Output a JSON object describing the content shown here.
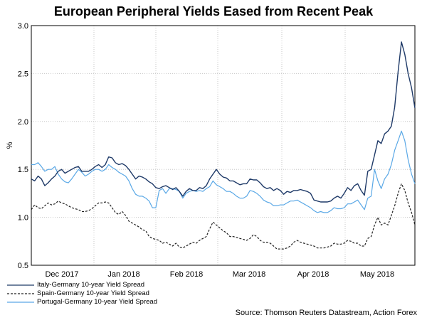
{
  "chart_data": {
    "type": "line",
    "title": "European Peripheral Yields Eased from Recent Peak",
    "ylabel": "%",
    "xlabel": "",
    "ylim": [
      0.5,
      3.0
    ],
    "yticks": [
      "0.5",
      "1.0",
      "1.5",
      "2.0",
      "2.5",
      "3.0"
    ],
    "xticks": [
      "Dec 2017",
      "Jan 2018",
      "Feb 2018",
      "Mar 2018",
      "Apr 2018",
      "May 2018"
    ],
    "grid": true,
    "legend_placement": "bottom-left",
    "source": "Source: Thomson Reuters Datastream, Action Forex",
    "series": [
      {
        "name": "Italy-Germany 10-year Yield Spread",
        "color": "#1f3a68",
        "style": "solid",
        "values": [
          1.4,
          1.38,
          1.43,
          1.4,
          1.33,
          1.36,
          1.4,
          1.43,
          1.48,
          1.5,
          1.46,
          1.48,
          1.5,
          1.52,
          1.53,
          1.48,
          1.48,
          1.48,
          1.5,
          1.53,
          1.55,
          1.52,
          1.55,
          1.63,
          1.62,
          1.57,
          1.55,
          1.56,
          1.54,
          1.5,
          1.45,
          1.4,
          1.43,
          1.42,
          1.4,
          1.37,
          1.35,
          1.31,
          1.3,
          1.32,
          1.33,
          1.31,
          1.29,
          1.31,
          1.27,
          1.22,
          1.27,
          1.3,
          1.28,
          1.28,
          1.31,
          1.3,
          1.33,
          1.4,
          1.45,
          1.5,
          1.45,
          1.42,
          1.41,
          1.38,
          1.38,
          1.36,
          1.34,
          1.35,
          1.35,
          1.4,
          1.39,
          1.39,
          1.36,
          1.32,
          1.3,
          1.31,
          1.28,
          1.3,
          1.28,
          1.24,
          1.27,
          1.26,
          1.28,
          1.28,
          1.29,
          1.28,
          1.27,
          1.25,
          1.18,
          1.17,
          1.16,
          1.16,
          1.16,
          1.17,
          1.2,
          1.22,
          1.2,
          1.25,
          1.31,
          1.28,
          1.33,
          1.35,
          1.28,
          1.23,
          1.48,
          1.5,
          1.65,
          1.8,
          1.77,
          1.87,
          1.9,
          1.95,
          2.15,
          2.52,
          2.83,
          2.7,
          2.5,
          2.35,
          2.14
        ]
      },
      {
        "name": "Spain-Germany 10-year Yield Spread",
        "color": "#222222",
        "style": "dashed",
        "values": [
          1.08,
          1.13,
          1.1,
          1.09,
          1.12,
          1.15,
          1.13,
          1.14,
          1.17,
          1.15,
          1.14,
          1.12,
          1.1,
          1.09,
          1.08,
          1.06,
          1.06,
          1.07,
          1.09,
          1.12,
          1.15,
          1.15,
          1.16,
          1.15,
          1.1,
          1.05,
          1.03,
          1.06,
          1.02,
          0.96,
          0.94,
          0.92,
          0.9,
          0.87,
          0.86,
          0.8,
          0.78,
          0.77,
          0.76,
          0.73,
          0.74,
          0.72,
          0.7,
          0.73,
          0.69,
          0.68,
          0.7,
          0.72,
          0.74,
          0.73,
          0.76,
          0.78,
          0.8,
          0.88,
          0.95,
          0.92,
          0.89,
          0.86,
          0.84,
          0.8,
          0.8,
          0.79,
          0.78,
          0.77,
          0.76,
          0.78,
          0.82,
          0.8,
          0.76,
          0.74,
          0.74,
          0.73,
          0.7,
          0.67,
          0.67,
          0.67,
          0.68,
          0.7,
          0.74,
          0.76,
          0.74,
          0.73,
          0.72,
          0.71,
          0.7,
          0.68,
          0.68,
          0.68,
          0.69,
          0.7,
          0.73,
          0.72,
          0.72,
          0.73,
          0.76,
          0.75,
          0.73,
          0.73,
          0.7,
          0.7,
          0.78,
          0.8,
          0.92,
          1.0,
          0.92,
          0.94,
          0.92,
          1.02,
          1.12,
          1.25,
          1.35,
          1.28,
          1.15,
          1.05,
          0.92
        ]
      },
      {
        "name": "Portugal-Germany 10-year Yield Spread",
        "color": "#5aa8e6",
        "style": "solid",
        "values": [
          1.55,
          1.55,
          1.57,
          1.53,
          1.48,
          1.5,
          1.5,
          1.53,
          1.45,
          1.4,
          1.37,
          1.36,
          1.4,
          1.45,
          1.5,
          1.47,
          1.43,
          1.45,
          1.48,
          1.5,
          1.5,
          1.48,
          1.5,
          1.55,
          1.52,
          1.5,
          1.47,
          1.45,
          1.43,
          1.38,
          1.3,
          1.24,
          1.22,
          1.22,
          1.2,
          1.17,
          1.1,
          1.1,
          1.28,
          1.3,
          1.25,
          1.3,
          1.3,
          1.29,
          1.27,
          1.2,
          1.25,
          1.27,
          1.28,
          1.27,
          1.28,
          1.27,
          1.3,
          1.32,
          1.38,
          1.34,
          1.32,
          1.3,
          1.27,
          1.27,
          1.25,
          1.22,
          1.2,
          1.2,
          1.22,
          1.28,
          1.27,
          1.25,
          1.22,
          1.18,
          1.16,
          1.15,
          1.12,
          1.12,
          1.13,
          1.13,
          1.15,
          1.17,
          1.17,
          1.18,
          1.16,
          1.14,
          1.12,
          1.1,
          1.07,
          1.05,
          1.06,
          1.05,
          1.05,
          1.07,
          1.1,
          1.09,
          1.09,
          1.1,
          1.14,
          1.14,
          1.16,
          1.18,
          1.13,
          1.08,
          1.2,
          1.22,
          1.5,
          1.38,
          1.3,
          1.4,
          1.45,
          1.55,
          1.7,
          1.8,
          1.9,
          1.8,
          1.6,
          1.45,
          1.35
        ]
      }
    ]
  }
}
